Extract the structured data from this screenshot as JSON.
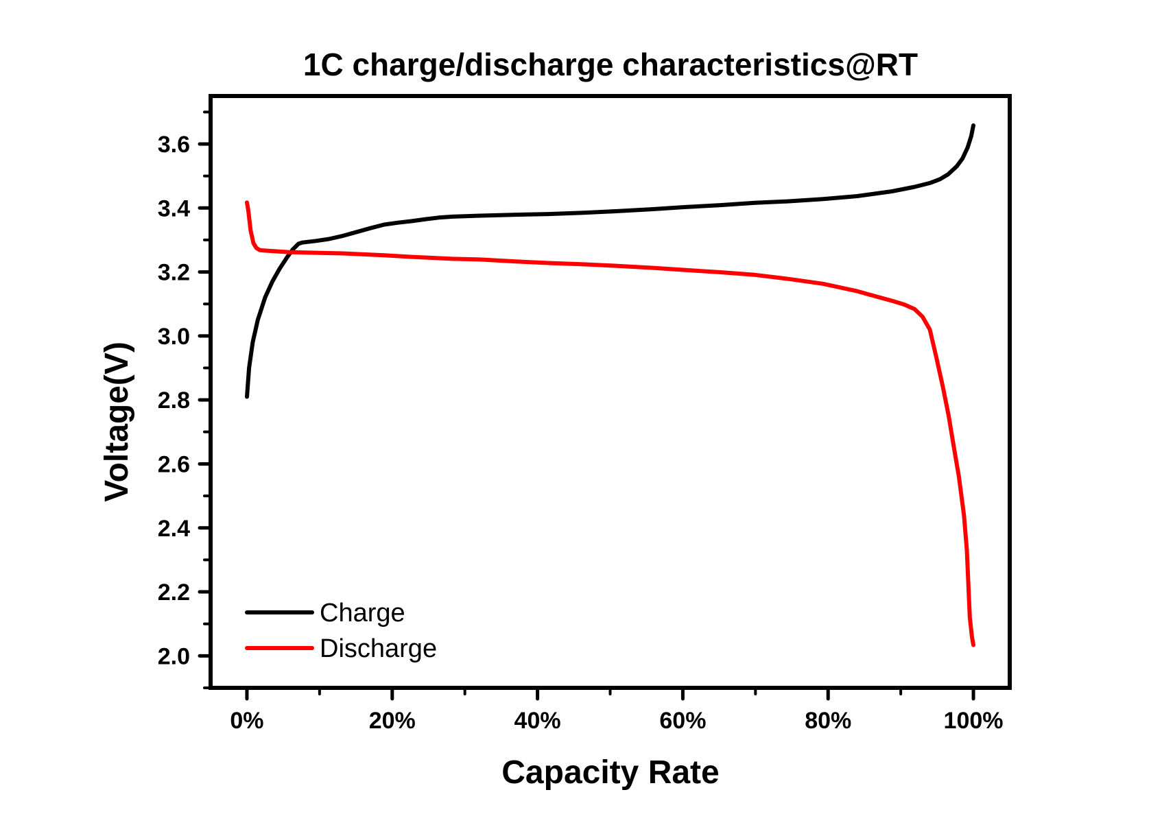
{
  "chart_data": {
    "type": "line",
    "title": "1C charge/discharge characteristics@RT",
    "xlabel": "Capacity Rate",
    "ylabel": "Voltage(V)",
    "xlim": [
      -5,
      105
    ],
    "ylim": [
      1.9,
      3.75
    ],
    "x_ticks": [
      0,
      20,
      40,
      60,
      80,
      100
    ],
    "x_tick_labels": [
      "0%",
      "20%",
      "40%",
      "60%",
      "80%",
      "100%"
    ],
    "x_minor_ticks": [
      10,
      30,
      50,
      70,
      90
    ],
    "y_ticks": [
      2.0,
      2.2,
      2.4,
      2.6,
      2.8,
      3.0,
      3.2,
      3.4,
      3.6
    ],
    "y_tick_labels": [
      "2.0",
      "2.2",
      "2.4",
      "2.6",
      "2.8",
      "3.0",
      "3.2",
      "3.4",
      "3.6"
    ],
    "y_minor_ticks": [
      1.9,
      2.1,
      2.3,
      2.5,
      2.7,
      2.9,
      3.1,
      3.3,
      3.5,
      3.7
    ],
    "grid": false,
    "legend": {
      "placement": "bottom-left"
    },
    "series": [
      {
        "name": "Charge",
        "color": "#000000",
        "x": [
          0,
          0.3,
          0.8,
          1.5,
          2.5,
          3.5,
          4.5,
          5.5,
          6.3,
          7.1,
          7.6,
          9.5,
          11.3,
          13.2,
          15.1,
          17.0,
          18.9,
          20.8,
          22.7,
          24.6,
          26.4,
          28.3,
          32.1,
          37.0,
          41.5,
          46.3,
          51.0,
          55.7,
          60.4,
          65.2,
          69.9,
          74.6,
          79.3,
          84.0,
          88.8,
          91.9,
          94.0,
          95.4,
          96.5,
          97.7,
          98.5,
          99.2,
          99.7,
          100
        ],
        "y": [
          2.81,
          2.9,
          2.98,
          3.05,
          3.12,
          3.17,
          3.21,
          3.245,
          3.27,
          3.288,
          3.292,
          3.297,
          3.303,
          3.313,
          3.325,
          3.337,
          3.348,
          3.354,
          3.359,
          3.365,
          3.37,
          3.373,
          3.376,
          3.379,
          3.381,
          3.385,
          3.39,
          3.396,
          3.403,
          3.409,
          3.416,
          3.421,
          3.428,
          3.437,
          3.452,
          3.466,
          3.478,
          3.49,
          3.505,
          3.53,
          3.555,
          3.589,
          3.625,
          3.658
        ]
      },
      {
        "name": "Discharge",
        "color": "#ff0000",
        "x": [
          0,
          0.2,
          0.5,
          0.9,
          1.3,
          1.8,
          3.0,
          5.7,
          9.5,
          13.2,
          18.9,
          22.7,
          28.3,
          32.1,
          37.0,
          41.5,
          46.3,
          51.0,
          55.7,
          60.4,
          65.2,
          69.9,
          74.6,
          79.3,
          84.0,
          86.5,
          88.8,
          90.5,
          91.9,
          93.0,
          94.0,
          94.9,
          95.8,
          96.6,
          97.3,
          98.0,
          98.7,
          99.1,
          99.5,
          99.8,
          100
        ],
        "y": [
          3.417,
          3.39,
          3.33,
          3.29,
          3.275,
          3.268,
          3.266,
          3.262,
          3.26,
          3.258,
          3.252,
          3.247,
          3.241,
          3.239,
          3.233,
          3.228,
          3.224,
          3.219,
          3.213,
          3.206,
          3.199,
          3.191,
          3.178,
          3.163,
          3.14,
          3.124,
          3.11,
          3.098,
          3.084,
          3.06,
          3.02,
          2.933,
          2.84,
          2.75,
          2.654,
          2.56,
          2.439,
          2.33,
          2.12,
          2.06,
          2.034
        ]
      }
    ]
  }
}
